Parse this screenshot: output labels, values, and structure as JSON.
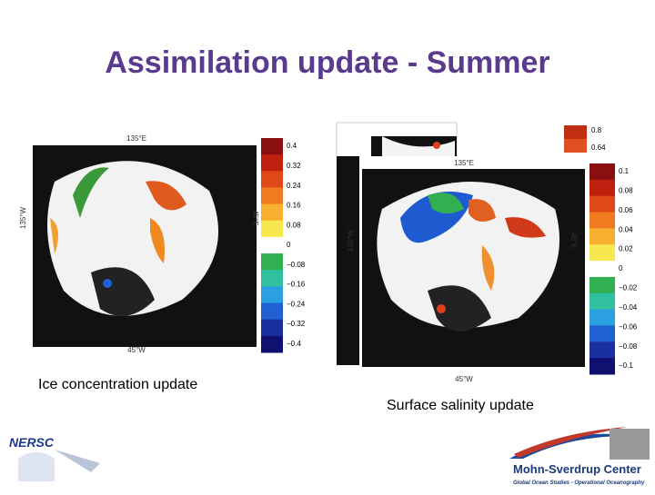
{
  "title": "Assimilation update - Summer",
  "left_panel": {
    "caption": "Ice concentration update",
    "map_labels": {
      "top": "135°E",
      "bottom": "45°W",
      "left": "135°W",
      "right": "45°E"
    },
    "colorbar_labels": [
      "0.4",
      "0.32",
      "0.24",
      "0.16",
      "0.08",
      "0",
      "−0.08",
      "−0.16",
      "−0.24",
      "−0.32",
      "−0.4"
    ]
  },
  "right_panel": {
    "caption": "Surface salinity update",
    "map_labels": {
      "top": "135°E",
      "bottom": "45°W",
      "left": "135°W",
      "right": "45°E"
    },
    "colorbar_labels": [
      "0.1",
      "0.08",
      "0.06",
      "0.04",
      "0.02",
      "0",
      "−0.02",
      "−0.04",
      "−0.06",
      "−0.08",
      "−0.1"
    ],
    "back_colorbar_labels": [
      "0.8",
      "0.64"
    ]
  },
  "logos": {
    "left": "NERSC",
    "right_title": "Mohn-Sverdrup Center",
    "right_subtitle": "Global Ocean Studies - Operational Oceanography"
  }
}
